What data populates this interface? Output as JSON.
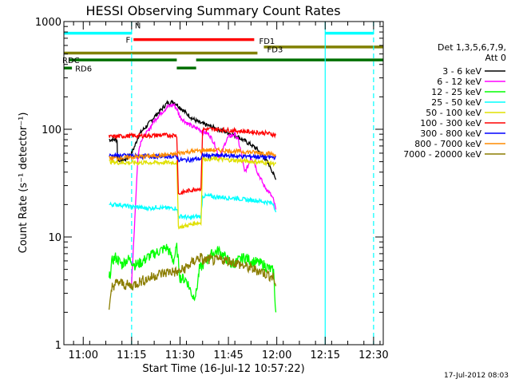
{
  "chart_data": {
    "type": "line",
    "title": "HESSI Observing Summary Count Rates",
    "xlabel": "Start Time (16-Jul-12 10:57:22)",
    "ylabel": "Count Rate (s⁻¹ detector⁻¹)",
    "yscale": "log",
    "ylim": [
      1,
      1000
    ],
    "xlim_min": [
      -3,
      96
    ],
    "x_ticks": [
      {
        "min": 3,
        "label": "11:00"
      },
      {
        "min": 18,
        "label": "11:15"
      },
      {
        "min": 33,
        "label": "11:30"
      },
      {
        "min": 48,
        "label": "11:45"
      },
      {
        "min": 63,
        "label": "12:00"
      },
      {
        "min": 78,
        "label": "12:15"
      },
      {
        "min": 93,
        "label": "12:30"
      }
    ],
    "y_ticks": [
      {
        "value": 1,
        "label": "1"
      },
      {
        "value": 10,
        "label": "10"
      },
      {
        "value": 100,
        "label": "100"
      },
      {
        "value": 1000,
        "label": "1000"
      }
    ],
    "legend": {
      "header": [
        "Det 1,3,5,6,7,9,",
        "Att 0"
      ],
      "placement": "right"
    },
    "series": [
      {
        "name": "3 - 6 keV",
        "color": "#000000",
        "x": [
          11,
          13.5,
          13.6,
          16,
          17,
          18,
          19,
          20,
          21,
          23,
          25,
          27,
          29,
          31,
          32,
          33,
          35,
          37,
          39,
          41,
          43,
          45,
          47,
          49,
          51,
          53,
          55,
          57,
          59,
          61,
          62,
          62.7
        ],
        "y": [
          80,
          80,
          52,
          52,
          55,
          60,
          70,
          85,
          95,
          110,
          130,
          150,
          175,
          180,
          170,
          160,
          140,
          125,
          115,
          110,
          105,
          100,
          95,
          90,
          85,
          78,
          72,
          65,
          55,
          45,
          38,
          34
        ]
      },
      {
        "name": "6 - 12 keV",
        "color": "#ff00ff",
        "x": [
          18,
          19,
          20,
          21,
          23,
          25,
          27,
          29,
          31,
          32,
          33,
          35,
          37,
          39,
          40,
          42,
          43,
          44,
          45,
          46,
          47,
          48,
          50,
          51,
          52,
          53,
          54,
          55,
          56,
          57,
          58,
          59,
          61,
          62,
          62.7
        ],
        "y": [
          4,
          15,
          60,
          80,
          95,
          120,
          140,
          160,
          170,
          155,
          130,
          115,
          105,
          100,
          95,
          90,
          80,
          70,
          55,
          60,
          75,
          85,
          90,
          80,
          60,
          40,
          45,
          55,
          50,
          40,
          35,
          30,
          25,
          22,
          18
        ]
      },
      {
        "name": "12 - 25 keV",
        "color": "#00ff00",
        "x": [
          11,
          12,
          13,
          14,
          15,
          16,
          17,
          18,
          19,
          21,
          23,
          25,
          27,
          29,
          31,
          32,
          33,
          35,
          37,
          38,
          39,
          41,
          43,
          45,
          47,
          49,
          51,
          53,
          55,
          57,
          59,
          61,
          62,
          62.7
        ],
        "y": [
          4,
          6,
          6.5,
          6,
          5.5,
          6,
          6.2,
          6,
          5.5,
          5.8,
          6.5,
          7,
          7.5,
          8,
          6,
          8,
          4.2,
          4,
          2.8,
          3,
          5,
          6,
          7,
          7.5,
          6.5,
          5.5,
          6,
          6.5,
          6,
          5.8,
          5.5,
          5,
          4.8,
          2
        ]
      },
      {
        "name": "25 - 50 keV",
        "color": "#00ffff",
        "x": [
          11,
          12,
          14,
          16,
          18,
          20,
          22,
          24,
          26,
          28,
          30,
          32,
          32.5,
          34,
          36,
          38,
          39.5,
          40,
          42,
          44,
          46,
          48,
          50,
          52,
          54,
          56,
          58,
          60,
          62,
          62.7
        ],
        "y": [
          20,
          20,
          20,
          19.5,
          19,
          19,
          18.5,
          18.5,
          19,
          18.5,
          18.5,
          18.5,
          15.5,
          15.5,
          15,
          15.5,
          15.5,
          24,
          24,
          23.5,
          23.5,
          23,
          23,
          22.5,
          22,
          22,
          21.5,
          21,
          20.5,
          17
        ]
      },
      {
        "name": "50 - 100 keV",
        "color": "#e0e000",
        "x": [
          11,
          14,
          18,
          22,
          26,
          30,
          32,
          32.5,
          34,
          36,
          38,
          39.5,
          40,
          44,
          48,
          52,
          56,
          60,
          62.7
        ],
        "y": [
          50,
          49,
          49,
          49,
          49,
          49,
          49,
          12.5,
          12.5,
          13,
          13.5,
          13.5,
          53,
          53,
          52,
          51,
          50,
          49,
          48
        ]
      },
      {
        "name": "100 - 300 keV",
        "color": "#ff0000",
        "x": [
          11,
          14,
          18,
          22,
          26,
          30,
          32,
          32.5,
          34,
          36,
          38,
          39.5,
          40,
          44,
          48,
          52,
          56,
          60,
          62.7
        ],
        "y": [
          85,
          86,
          87,
          87,
          88,
          88,
          88,
          25,
          26,
          27,
          28,
          28,
          100,
          100,
          98,
          96,
          94,
          92,
          88
        ]
      },
      {
        "name": "300 - 800 keV",
        "color": "#0000ff",
        "x": [
          11,
          14,
          18,
          22,
          26,
          30,
          32,
          32.5,
          34,
          36,
          38,
          39.5,
          40,
          44,
          48,
          52,
          56,
          60,
          62.7
        ],
        "y": [
          57,
          57,
          57,
          56,
          56,
          56,
          56,
          52,
          52,
          52,
          53,
          53,
          57,
          57,
          57,
          56,
          56,
          55,
          55
        ]
      },
      {
        "name": "800 - 7000 keV",
        "color": "#ff8c00",
        "x": [
          11,
          14,
          18,
          22,
          26,
          30,
          32,
          32.5,
          34,
          36,
          38,
          39.5,
          40,
          44,
          48,
          52,
          56,
          60,
          62.7
        ],
        "y": [
          54,
          54,
          55,
          56,
          57,
          58,
          59,
          60,
          61,
          62,
          63,
          63,
          64,
          64,
          63,
          62,
          61,
          60,
          58
        ]
      },
      {
        "name": "7000 - 20000 keV",
        "color": "#8b7d00",
        "x": [
          11,
          12,
          14,
          16,
          18,
          20,
          22,
          24,
          26,
          28,
          30,
          32,
          32.5,
          34,
          36,
          38,
          39.5,
          40,
          42,
          44,
          46,
          48,
          50,
          52,
          54,
          56,
          58,
          60,
          62,
          62.7
        ],
        "y": [
          2,
          3.5,
          3.8,
          3.6,
          3.5,
          3.8,
          4,
          4.2,
          4.5,
          4.6,
          4.8,
          4.7,
          4.7,
          5,
          5.5,
          6.2,
          6.5,
          6,
          6.2,
          6,
          6.2,
          6,
          5.8,
          5.5,
          5.2,
          5,
          4.8,
          4.5,
          4.2,
          3.5
        ]
      }
    ],
    "flags": [
      {
        "label": "N",
        "color": "#00ffff",
        "segments": [
          [
            -3,
            18
          ],
          [
            78,
            93
          ]
        ],
        "level": 780
      },
      {
        "label": "F",
        "color": "#ff0000",
        "segments": [
          [
            18.6,
            56
          ]
        ],
        "level": 680
      },
      {
        "label": "FD1",
        "color": "#808000",
        "segments": [
          [
            59,
            96
          ]
        ],
        "level": 580
      },
      {
        "label": "FD3",
        "color": "#808000",
        "segments": [
          [
            -3,
            57
          ]
        ],
        "level": 510
      },
      {
        "label": "RDC",
        "color": "#007000",
        "segments": [
          [
            -1.5,
            32
          ],
          [
            38,
            96
          ]
        ],
        "level": 440
      },
      {
        "label": "RD6",
        "color": "#007000",
        "segments": [
          [
            -3,
            -0.5
          ],
          [
            32,
            38
          ]
        ],
        "level": 370
      }
    ],
    "vlines": [
      {
        "min": 18,
        "color": "#00ffff",
        "style": "dashed"
      },
      {
        "min": 78,
        "color": "#00ffff",
        "style": "solid"
      },
      {
        "min": 93,
        "color": "#00ffff",
        "style": "dashed"
      }
    ]
  },
  "footer": {
    "timestamp": "17-Jul-2012 08:03"
  }
}
